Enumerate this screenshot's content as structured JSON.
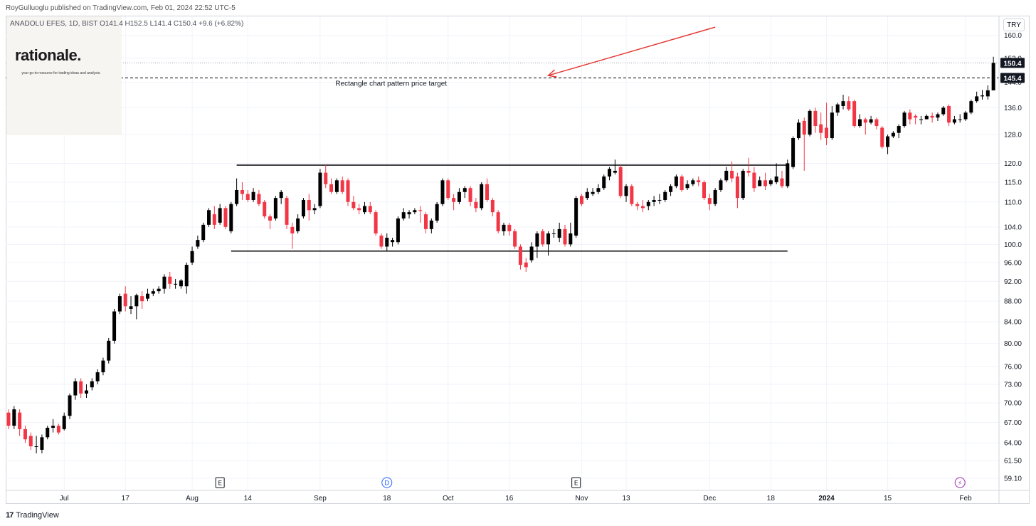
{
  "header": {
    "publisher": "RoyGulluoglu published on TradingView.com, Feb 01, 2024 22:52 UTC-5",
    "symbol_info": "ANADOLU EFES, 1D, BIST  O141.4  H152.5  L141.4  C150.4  +9.6 (+6.82%)",
    "currency": "TRY"
  },
  "logo": {
    "word": "rationale.",
    "tagline": "your go-to resource for trading ideas and analysis."
  },
  "footer": {
    "brand_mark": "17",
    "brand": "TradingView"
  },
  "colors": {
    "up": "#000000",
    "down": "#f23645",
    "arrow": "#e53935",
    "grid": "#f0f3fa"
  },
  "chart_data": {
    "type": "candlestick",
    "y_axis_scale": "log",
    "ylim": [
      57.5,
      167
    ],
    "y_ticks": [
      {
        "label": "160.0",
        "value": 160
      },
      {
        "label": "152.0",
        "value": 152
      },
      {
        "label": "144.0",
        "value": 144
      },
      {
        "label": "136.0",
        "value": 136
      },
      {
        "label": "128.0",
        "value": 128
      },
      {
        "label": "120.0",
        "value": 120
      },
      {
        "label": "115.0",
        "value": 115
      },
      {
        "label": "110.0",
        "value": 110
      },
      {
        "label": "104.0",
        "value": 104
      },
      {
        "label": "100.0",
        "value": 100
      },
      {
        "label": "96.00",
        "value": 96
      },
      {
        "label": "92.00",
        "value": 92
      },
      {
        "label": "88.00",
        "value": 88
      },
      {
        "label": "84.00",
        "value": 84
      },
      {
        "label": "80.00",
        "value": 80
      },
      {
        "label": "76.00",
        "value": 76
      },
      {
        "label": "73.00",
        "value": 73
      },
      {
        "label": "70.00",
        "value": 70
      },
      {
        "label": "67.00",
        "value": 67
      },
      {
        "label": "64.00",
        "value": 64
      },
      {
        "label": "61.50",
        "value": 61.5
      },
      {
        "label": "59.10",
        "value": 59.1
      }
    ],
    "price_labels": [
      {
        "label": "150.4",
        "value": 150.4
      },
      {
        "label": "145.4",
        "value": 145.4
      }
    ],
    "x_ticks": [
      {
        "label": "Jul",
        "index": 10
      },
      {
        "label": "17",
        "index": 21
      },
      {
        "label": "Aug",
        "index": 33
      },
      {
        "label": "14",
        "index": 43
      },
      {
        "label": "Sep",
        "index": 56
      },
      {
        "label": "18",
        "index": 68
      },
      {
        "label": "Oct",
        "index": 79
      },
      {
        "label": "16",
        "index": 90
      },
      {
        "label": "Nov",
        "index": 103
      },
      {
        "label": "13",
        "index": 111
      },
      {
        "label": "Dec",
        "index": 126
      },
      {
        "label": "18",
        "index": 137
      },
      {
        "label": "2024",
        "index": 147
      },
      {
        "label": "15",
        "index": 158
      },
      {
        "label": "Feb",
        "index": 172
      }
    ],
    "event_markers": [
      {
        "label": "E",
        "index": 38,
        "kind": "earnings"
      },
      {
        "label": "D",
        "index": 68,
        "kind": "dividend"
      },
      {
        "label": "E",
        "index": 102,
        "kind": "earnings"
      },
      {
        "label": "⚡",
        "index": 171,
        "kind": "split"
      }
    ],
    "annotations": {
      "rectangle_top": 119.5,
      "rectangle_bottom": 98.5,
      "rectangle_start_index": 41,
      "rectangle_end_index": 140,
      "rectangle_bottom_start_index": 40,
      "price_target": 145.4,
      "price_target_label": "Rectangle chart pattern price target",
      "current_price": 150.4,
      "arrow_from": {
        "index": 127,
        "value": 163
      },
      "arrow_to": {
        "index": 97,
        "value": 146.2
      }
    },
    "candles": [
      [
        68.5,
        66.5,
        69.0,
        66.0
      ],
      [
        66.5,
        69.0,
        69.5,
        66.0
      ],
      [
        68.5,
        66.0,
        69.0,
        65.0
      ],
      [
        66.0,
        64.5,
        66.5,
        64.0
      ],
      [
        65.0,
        63.5,
        65.5,
        63.0
      ],
      [
        63.5,
        63.5,
        65.0,
        62.5
      ],
      [
        63.0,
        64.8,
        65.2,
        62.5
      ],
      [
        64.8,
        66.2,
        66.5,
        64.5
      ],
      [
        66.2,
        66.5,
        67.5,
        65.5
      ],
      [
        66.5,
        65.5,
        66.8,
        65.2
      ],
      [
        66.0,
        68.0,
        68.5,
        65.8
      ],
      [
        68.0,
        71.2,
        71.5,
        67.5
      ],
      [
        71.2,
        73.5,
        74.0,
        70.5
      ],
      [
        73.5,
        71.5,
        74.0,
        70.8
      ],
      [
        71.5,
        72.0,
        73.0,
        70.8
      ],
      [
        72.5,
        73.5,
        74.0,
        72.0
      ],
      [
        73.5,
        75.0,
        75.5,
        73.0
      ],
      [
        75.0,
        77.0,
        77.5,
        74.5
      ],
      [
        77.0,
        80.5,
        81.0,
        76.5
      ],
      [
        80.5,
        86.0,
        86.5,
        80.0
      ],
      [
        86.0,
        89.0,
        89.5,
        85.5
      ],
      [
        89.5,
        87.0,
        91.0,
        86.0
      ],
      [
        86.5,
        87.0,
        89.0,
        85.5
      ],
      [
        87.0,
        89.2,
        89.5,
        84.5
      ],
      [
        89.0,
        88.0,
        90.0,
        86.5
      ],
      [
        88.5,
        89.5,
        90.5,
        88.0
      ],
      [
        89.5,
        90.0,
        90.5,
        89.0
      ],
      [
        90.0,
        90.5,
        91.0,
        89.5
      ],
      [
        90.5,
        93.0,
        93.5,
        89.5
      ],
      [
        93.0,
        91.5,
        94.0,
        90.5
      ],
      [
        91.5,
        91.5,
        92.5,
        90.5
      ],
      [
        91.0,
        92.2,
        92.5,
        90.5
      ],
      [
        91.0,
        95.5,
        96.0,
        89.5
      ],
      [
        96.0,
        98.5,
        99.5,
        95.5
      ],
      [
        99.5,
        101.0,
        102.0,
        99.0
      ],
      [
        101.0,
        104.5,
        105.0,
        100.5
      ],
      [
        104.5,
        108.0,
        108.5,
        104.0
      ],
      [
        107.0,
        104.5,
        109.0,
        103.5
      ],
      [
        105.0,
        108.5,
        109.5,
        104.5
      ],
      [
        108.5,
        104.0,
        109.0,
        103.5
      ],
      [
        103.0,
        109.5,
        110.0,
        102.5
      ],
      [
        109.5,
        113.0,
        116.0,
        109.0
      ],
      [
        113.0,
        112.0,
        115.0,
        110.5
      ],
      [
        112.0,
        110.5,
        113.0,
        110.0
      ],
      [
        110.5,
        112.5,
        113.5,
        110.0
      ],
      [
        112.0,
        109.5,
        113.0,
        109.0
      ],
      [
        110.0,
        106.5,
        110.5,
        106.0
      ],
      [
        106.5,
        105.5,
        107.0,
        103.5
      ],
      [
        106.0,
        111.0,
        111.5,
        105.5
      ],
      [
        111.0,
        112.5,
        113.0,
        109.5
      ],
      [
        111.0,
        104.5,
        111.5,
        103.5
      ],
      [
        104.0,
        102.5,
        105.0,
        99.0
      ],
      [
        103.0,
        106.0,
        107.0,
        102.5
      ],
      [
        106.5,
        110.5,
        111.0,
        106.0
      ],
      [
        110.5,
        108.0,
        112.0,
        105.5
      ],
      [
        108.0,
        108.5,
        109.5,
        107.0
      ],
      [
        109.0,
        117.5,
        118.5,
        108.5
      ],
      [
        117.5,
        114.5,
        119.5,
        113.5
      ],
      [
        114.5,
        112.5,
        116.0,
        112.0
      ],
      [
        112.5,
        115.5,
        116.0,
        112.0
      ],
      [
        115.5,
        112.5,
        116.5,
        112.0
      ],
      [
        115.5,
        110.0,
        116.0,
        109.0
      ],
      [
        110.0,
        108.5,
        111.5,
        108.0
      ],
      [
        108.5,
        108.0,
        109.5,
        107.0
      ],
      [
        107.5,
        109.0,
        110.0,
        107.0
      ],
      [
        109.0,
        107.5,
        110.0,
        107.0
      ],
      [
        107.5,
        102.5,
        108.0,
        102.0
      ],
      [
        102.0,
        99.5,
        102.5,
        99.0
      ],
      [
        99.5,
        101.5,
        102.5,
        98.5
      ],
      [
        100.5,
        101.0,
        101.5,
        99.5
      ],
      [
        100.5,
        106.0,
        106.5,
        100.0
      ],
      [
        106.0,
        107.5,
        108.5,
        105.5
      ],
      [
        107.0,
        107.5,
        108.0,
        106.0
      ],
      [
        107.5,
        108.0,
        108.5,
        107.0
      ],
      [
        108.0,
        107.8,
        109.0,
        105.0
      ],
      [
        107.0,
        103.5,
        107.5,
        102.5
      ],
      [
        103.5,
        105.5,
        106.0,
        102.5
      ],
      [
        105.5,
        109.5,
        110.0,
        105.0
      ],
      [
        109.5,
        115.5,
        116.0,
        109.0
      ],
      [
        115.5,
        111.0,
        116.0,
        110.5
      ],
      [
        111.0,
        110.0,
        112.0,
        108.0
      ],
      [
        110.0,
        112.5,
        113.5,
        109.5
      ],
      [
        112.5,
        113.5,
        114.0,
        111.0
      ],
      [
        113.5,
        110.0,
        114.0,
        109.0
      ],
      [
        110.0,
        108.5,
        111.0,
        107.5
      ],
      [
        108.5,
        114.5,
        115.0,
        108.0
      ],
      [
        114.5,
        110.5,
        116.0,
        110.0
      ],
      [
        110.5,
        107.5,
        111.0,
        106.5
      ],
      [
        107.5,
        103.0,
        108.0,
        102.5
      ],
      [
        103.0,
        104.5,
        105.0,
        102.0
      ],
      [
        104.5,
        103.0,
        105.0,
        102.0
      ],
      [
        103.0,
        99.5,
        103.5,
        99.0
      ],
      [
        99.5,
        95.5,
        100.0,
        94.5
      ],
      [
        96.0,
        95.0,
        97.0,
        94.0
      ],
      [
        96.5,
        99.5,
        100.5,
        96.0
      ],
      [
        99.5,
        102.5,
        103.0,
        97.0
      ],
      [
        103.0,
        100.0,
        103.5,
        99.5
      ],
      [
        100.0,
        102.5,
        103.0,
        97.5
      ],
      [
        102.5,
        102.5,
        103.5,
        101.5
      ],
      [
        101.5,
        103.5,
        105.0,
        100.5
      ],
      [
        103.5,
        100.0,
        104.5,
        99.5
      ],
      [
        100.0,
        102.5,
        105.0,
        99.5
      ],
      [
        102.0,
        111.0,
        111.5,
        101.5
      ],
      [
        111.5,
        109.5,
        112.0,
        109.0
      ],
      [
        111.0,
        112.5,
        113.5,
        110.5
      ],
      [
        112.0,
        112.5,
        113.5,
        111.5
      ],
      [
        112.5,
        113.5,
        114.5,
        112.0
      ],
      [
        113.5,
        116.5,
        117.0,
        113.0
      ],
      [
        116.5,
        118.5,
        119.0,
        115.5
      ],
      [
        117.5,
        118.0,
        121.0,
        117.0
      ],
      [
        119.0,
        111.5,
        119.5,
        111.0
      ],
      [
        111.5,
        114.0,
        114.5,
        110.0
      ],
      [
        114.0,
        109.5,
        114.5,
        109.0
      ],
      [
        109.5,
        109.0,
        110.0,
        108.0
      ],
      [
        109.0,
        108.5,
        110.5,
        107.5
      ],
      [
        109.0,
        110.0,
        110.5,
        108.0
      ],
      [
        110.0,
        110.5,
        111.5,
        109.0
      ],
      [
        110.5,
        110.5,
        112.0,
        109.5
      ],
      [
        110.5,
        112.5,
        113.0,
        110.0
      ],
      [
        112.5,
        114.0,
        114.5,
        111.5
      ],
      [
        114.0,
        116.5,
        117.0,
        113.5
      ],
      [
        116.5,
        113.0,
        117.0,
        112.5
      ],
      [
        113.5,
        114.5,
        115.5,
        113.0
      ],
      [
        114.5,
        115.5,
        116.0,
        114.0
      ],
      [
        115.5,
        115.0,
        116.5,
        114.0
      ],
      [
        115.0,
        111.0,
        115.5,
        110.5
      ],
      [
        111.0,
        109.5,
        112.0,
        108.0
      ],
      [
        109.5,
        113.0,
        113.5,
        109.0
      ],
      [
        113.0,
        115.5,
        116.0,
        112.5
      ],
      [
        115.5,
        118.0,
        119.0,
        115.0
      ],
      [
        118.0,
        116.0,
        120.5,
        115.0
      ],
      [
        116.5,
        111.0,
        117.5,
        108.5
      ],
      [
        111.0,
        118.0,
        118.5,
        110.5
      ],
      [
        118.0,
        117.5,
        121.5,
        116.5
      ],
      [
        117.5,
        113.5,
        119.0,
        112.5
      ],
      [
        114.0,
        115.5,
        116.5,
        114.5
      ],
      [
        115.5,
        114.0,
        117.5,
        113.0
      ],
      [
        114.5,
        115.5,
        116.0,
        114.0
      ],
      [
        115.0,
        116.5,
        120.0,
        114.5
      ],
      [
        116.0,
        114.0,
        118.0,
        113.5
      ],
      [
        114.0,
        120.0,
        121.0,
        113.5
      ],
      [
        119.0,
        127.0,
        127.5,
        118.5
      ],
      [
        127.0,
        131.5,
        132.5,
        126.5
      ],
      [
        132.0,
        128.0,
        133.0,
        118.0
      ],
      [
        128.0,
        135.0,
        135.5,
        127.5
      ],
      [
        135.0,
        130.5,
        136.0,
        128.5
      ],
      [
        131.0,
        128.5,
        134.5,
        126.5
      ],
      [
        130.0,
        127.0,
        137.5,
        125.0
      ],
      [
        127.0,
        134.5,
        136.5,
        126.5
      ],
      [
        134.5,
        137.0,
        137.5,
        133.5
      ],
      [
        136.5,
        138.0,
        140.0,
        135.5
      ],
      [
        138.0,
        135.5,
        139.5,
        135.0
      ],
      [
        138.0,
        130.5,
        138.5,
        130.0
      ],
      [
        130.5,
        132.5,
        134.0,
        130.0
      ],
      [
        132.5,
        131.5,
        133.0,
        128.0
      ],
      [
        131.5,
        132.5,
        133.5,
        131.0
      ],
      [
        132.5,
        130.5,
        133.0,
        129.5
      ],
      [
        130.0,
        124.5,
        130.5,
        124.0
      ],
      [
        124.5,
        127.5,
        128.0,
        122.5
      ],
      [
        127.5,
        128.5,
        129.0,
        127.0
      ],
      [
        128.5,
        130.5,
        131.0,
        127.0
      ],
      [
        130.5,
        134.5,
        135.0,
        130.0
      ],
      [
        134.5,
        132.5,
        135.5,
        131.0
      ],
      [
        133.5,
        133.0,
        134.0,
        131.0
      ],
      [
        132.5,
        132.5,
        133.5,
        131.0
      ],
      [
        132.5,
        133.5,
        134.0,
        132.5
      ],
      [
        133.5,
        133.0,
        134.5,
        131.5
      ],
      [
        133.0,
        134.0,
        134.5,
        132.0
      ],
      [
        134.0,
        136.0,
        136.5,
        133.5
      ],
      [
        136.5,
        131.5,
        137.0,
        130.5
      ],
      [
        131.5,
        132.5,
        133.5,
        131.0
      ],
      [
        132.5,
        132.5,
        134.0,
        131.5
      ],
      [
        132.5,
        134.5,
        135.0,
        132.0
      ],
      [
        134.5,
        138.0,
        138.5,
        134.0
      ],
      [
        138.0,
        139.5,
        141.0,
        137.5
      ],
      [
        139.5,
        139.8,
        141.5,
        138.5
      ],
      [
        139.5,
        141.4,
        143.0,
        138.5
      ],
      [
        141.4,
        150.4,
        152.5,
        141.4
      ]
    ]
  }
}
